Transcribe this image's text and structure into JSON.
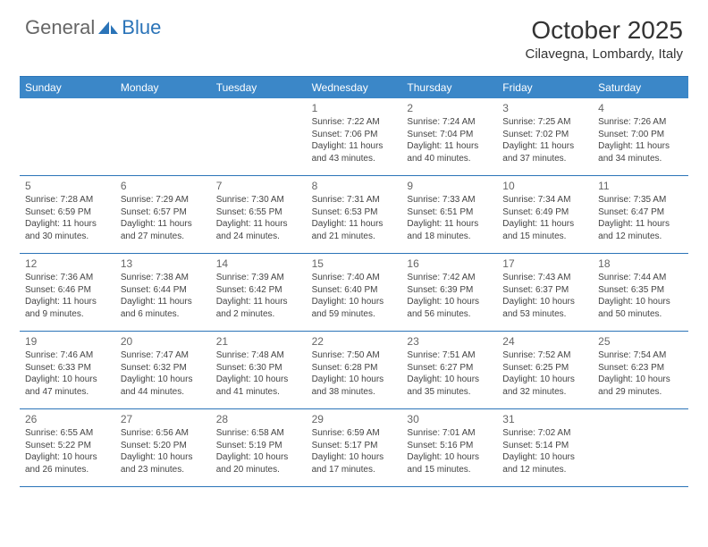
{
  "logo": {
    "general": "General",
    "blue": "Blue"
  },
  "title": "October 2025",
  "location": "Cilavegna, Lombardy, Italy",
  "colors": {
    "header_bg": "#3b87c8",
    "border": "#2b74b8",
    "text": "#444444",
    "day_number": "#666666"
  },
  "days_of_week": [
    "Sunday",
    "Monday",
    "Tuesday",
    "Wednesday",
    "Thursday",
    "Friday",
    "Saturday"
  ],
  "weeks": [
    [
      {
        "n": "",
        "sunrise": "",
        "sunset": "",
        "daylight1": "",
        "daylight2": ""
      },
      {
        "n": "",
        "sunrise": "",
        "sunset": "",
        "daylight1": "",
        "daylight2": ""
      },
      {
        "n": "",
        "sunrise": "",
        "sunset": "",
        "daylight1": "",
        "daylight2": ""
      },
      {
        "n": "1",
        "sunrise": "Sunrise: 7:22 AM",
        "sunset": "Sunset: 7:06 PM",
        "daylight1": "Daylight: 11 hours",
        "daylight2": "and 43 minutes."
      },
      {
        "n": "2",
        "sunrise": "Sunrise: 7:24 AM",
        "sunset": "Sunset: 7:04 PM",
        "daylight1": "Daylight: 11 hours",
        "daylight2": "and 40 minutes."
      },
      {
        "n": "3",
        "sunrise": "Sunrise: 7:25 AM",
        "sunset": "Sunset: 7:02 PM",
        "daylight1": "Daylight: 11 hours",
        "daylight2": "and 37 minutes."
      },
      {
        "n": "4",
        "sunrise": "Sunrise: 7:26 AM",
        "sunset": "Sunset: 7:00 PM",
        "daylight1": "Daylight: 11 hours",
        "daylight2": "and 34 minutes."
      }
    ],
    [
      {
        "n": "5",
        "sunrise": "Sunrise: 7:28 AM",
        "sunset": "Sunset: 6:59 PM",
        "daylight1": "Daylight: 11 hours",
        "daylight2": "and 30 minutes."
      },
      {
        "n": "6",
        "sunrise": "Sunrise: 7:29 AM",
        "sunset": "Sunset: 6:57 PM",
        "daylight1": "Daylight: 11 hours",
        "daylight2": "and 27 minutes."
      },
      {
        "n": "7",
        "sunrise": "Sunrise: 7:30 AM",
        "sunset": "Sunset: 6:55 PM",
        "daylight1": "Daylight: 11 hours",
        "daylight2": "and 24 minutes."
      },
      {
        "n": "8",
        "sunrise": "Sunrise: 7:31 AM",
        "sunset": "Sunset: 6:53 PM",
        "daylight1": "Daylight: 11 hours",
        "daylight2": "and 21 minutes."
      },
      {
        "n": "9",
        "sunrise": "Sunrise: 7:33 AM",
        "sunset": "Sunset: 6:51 PM",
        "daylight1": "Daylight: 11 hours",
        "daylight2": "and 18 minutes."
      },
      {
        "n": "10",
        "sunrise": "Sunrise: 7:34 AM",
        "sunset": "Sunset: 6:49 PM",
        "daylight1": "Daylight: 11 hours",
        "daylight2": "and 15 minutes."
      },
      {
        "n": "11",
        "sunrise": "Sunrise: 7:35 AM",
        "sunset": "Sunset: 6:47 PM",
        "daylight1": "Daylight: 11 hours",
        "daylight2": "and 12 minutes."
      }
    ],
    [
      {
        "n": "12",
        "sunrise": "Sunrise: 7:36 AM",
        "sunset": "Sunset: 6:46 PM",
        "daylight1": "Daylight: 11 hours",
        "daylight2": "and 9 minutes."
      },
      {
        "n": "13",
        "sunrise": "Sunrise: 7:38 AM",
        "sunset": "Sunset: 6:44 PM",
        "daylight1": "Daylight: 11 hours",
        "daylight2": "and 6 minutes."
      },
      {
        "n": "14",
        "sunrise": "Sunrise: 7:39 AM",
        "sunset": "Sunset: 6:42 PM",
        "daylight1": "Daylight: 11 hours",
        "daylight2": "and 2 minutes."
      },
      {
        "n": "15",
        "sunrise": "Sunrise: 7:40 AM",
        "sunset": "Sunset: 6:40 PM",
        "daylight1": "Daylight: 10 hours",
        "daylight2": "and 59 minutes."
      },
      {
        "n": "16",
        "sunrise": "Sunrise: 7:42 AM",
        "sunset": "Sunset: 6:39 PM",
        "daylight1": "Daylight: 10 hours",
        "daylight2": "and 56 minutes."
      },
      {
        "n": "17",
        "sunrise": "Sunrise: 7:43 AM",
        "sunset": "Sunset: 6:37 PM",
        "daylight1": "Daylight: 10 hours",
        "daylight2": "and 53 minutes."
      },
      {
        "n": "18",
        "sunrise": "Sunrise: 7:44 AM",
        "sunset": "Sunset: 6:35 PM",
        "daylight1": "Daylight: 10 hours",
        "daylight2": "and 50 minutes."
      }
    ],
    [
      {
        "n": "19",
        "sunrise": "Sunrise: 7:46 AM",
        "sunset": "Sunset: 6:33 PM",
        "daylight1": "Daylight: 10 hours",
        "daylight2": "and 47 minutes."
      },
      {
        "n": "20",
        "sunrise": "Sunrise: 7:47 AM",
        "sunset": "Sunset: 6:32 PM",
        "daylight1": "Daylight: 10 hours",
        "daylight2": "and 44 minutes."
      },
      {
        "n": "21",
        "sunrise": "Sunrise: 7:48 AM",
        "sunset": "Sunset: 6:30 PM",
        "daylight1": "Daylight: 10 hours",
        "daylight2": "and 41 minutes."
      },
      {
        "n": "22",
        "sunrise": "Sunrise: 7:50 AM",
        "sunset": "Sunset: 6:28 PM",
        "daylight1": "Daylight: 10 hours",
        "daylight2": "and 38 minutes."
      },
      {
        "n": "23",
        "sunrise": "Sunrise: 7:51 AM",
        "sunset": "Sunset: 6:27 PM",
        "daylight1": "Daylight: 10 hours",
        "daylight2": "and 35 minutes."
      },
      {
        "n": "24",
        "sunrise": "Sunrise: 7:52 AM",
        "sunset": "Sunset: 6:25 PM",
        "daylight1": "Daylight: 10 hours",
        "daylight2": "and 32 minutes."
      },
      {
        "n": "25",
        "sunrise": "Sunrise: 7:54 AM",
        "sunset": "Sunset: 6:23 PM",
        "daylight1": "Daylight: 10 hours",
        "daylight2": "and 29 minutes."
      }
    ],
    [
      {
        "n": "26",
        "sunrise": "Sunrise: 6:55 AM",
        "sunset": "Sunset: 5:22 PM",
        "daylight1": "Daylight: 10 hours",
        "daylight2": "and 26 minutes."
      },
      {
        "n": "27",
        "sunrise": "Sunrise: 6:56 AM",
        "sunset": "Sunset: 5:20 PM",
        "daylight1": "Daylight: 10 hours",
        "daylight2": "and 23 minutes."
      },
      {
        "n": "28",
        "sunrise": "Sunrise: 6:58 AM",
        "sunset": "Sunset: 5:19 PM",
        "daylight1": "Daylight: 10 hours",
        "daylight2": "and 20 minutes."
      },
      {
        "n": "29",
        "sunrise": "Sunrise: 6:59 AM",
        "sunset": "Sunset: 5:17 PM",
        "daylight1": "Daylight: 10 hours",
        "daylight2": "and 17 minutes."
      },
      {
        "n": "30",
        "sunrise": "Sunrise: 7:01 AM",
        "sunset": "Sunset: 5:16 PM",
        "daylight1": "Daylight: 10 hours",
        "daylight2": "and 15 minutes."
      },
      {
        "n": "31",
        "sunrise": "Sunrise: 7:02 AM",
        "sunset": "Sunset: 5:14 PM",
        "daylight1": "Daylight: 10 hours",
        "daylight2": "and 12 minutes."
      },
      {
        "n": "",
        "sunrise": "",
        "sunset": "",
        "daylight1": "",
        "daylight2": ""
      }
    ]
  ]
}
